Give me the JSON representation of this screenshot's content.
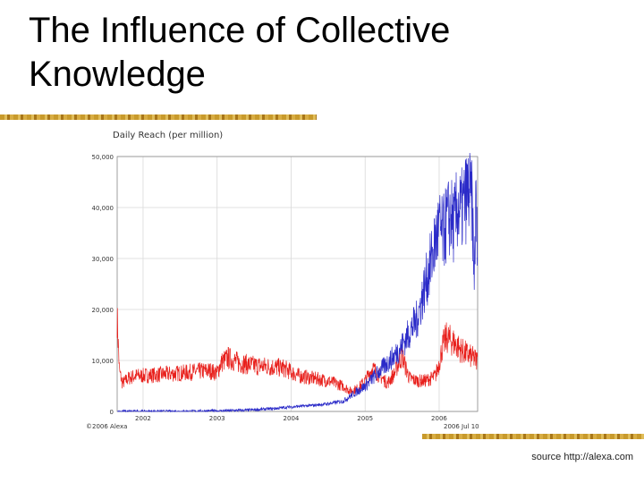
{
  "slide": {
    "title_lines": [
      "The Influence of Collective",
      "Knowledge"
    ],
    "source": "source http://alexa.com",
    "accent_color": "#c89a2c"
  },
  "chart_data": {
    "type": "line",
    "title": "Daily Reach (per million)",
    "copyright": "©2006 Alexa",
    "date_stamp": "2006 Jul 10",
    "ylim": [
      0,
      50000
    ],
    "yticks": [
      0,
      10000,
      20000,
      30000,
      40000,
      50000
    ],
    "ytick_labels": [
      "0",
      "10,000",
      "20,000",
      "30,000",
      "40,000",
      "50,000"
    ],
    "xlim": [
      2001.65,
      2006.52
    ],
    "xticks": [
      2002,
      2003,
      2004,
      2005,
      2006
    ],
    "xtick_labels": [
      "2002",
      "2003",
      "2004",
      "2005",
      "2006"
    ],
    "grid": true,
    "series": [
      {
        "color": "#e8201c",
        "x": [
          2001.65,
          2001.68,
          2001.72,
          2001.8,
          2001.9,
          2002.0,
          2002.2,
          2002.5,
          2002.7,
          2002.9,
          2003.0,
          2003.05,
          2003.15,
          2003.3,
          2003.5,
          2003.7,
          2003.9,
          2004.1,
          2004.3,
          2004.5,
          2004.7,
          2004.8,
          2004.9,
          2005.0,
          2005.1,
          2005.2,
          2005.3,
          2005.35,
          2005.4,
          2005.45,
          2005.5,
          2005.55,
          2005.6,
          2005.7,
          2005.8,
          2005.9,
          2005.95,
          2006.0,
          2006.05,
          2006.1,
          2006.2,
          2006.3,
          2006.4,
          2006.52
        ],
        "y": [
          18500,
          8000,
          5500,
          6500,
          7000,
          7000,
          7200,
          7500,
          7800,
          8000,
          7500,
          9500,
          10500,
          9500,
          9000,
          8800,
          8500,
          7000,
          6500,
          6000,
          5000,
          4000,
          4500,
          6000,
          8500,
          7000,
          5500,
          6500,
          7500,
          9500,
          11000,
          8500,
          6500,
          6000,
          6000,
          6500,
          7000,
          9500,
          13000,
          14500,
          13500,
          12000,
          11000,
          10000
        ]
      },
      {
        "color": "#2a2ac8",
        "x": [
          2001.65,
          2002.0,
          2002.5,
          2003.0,
          2003.3,
          2003.6,
          2003.8,
          2004.0,
          2004.3,
          2004.5,
          2004.7,
          2004.8,
          2004.9,
          2005.0,
          2005.1,
          2005.2,
          2005.3,
          2005.4,
          2005.5,
          2005.6,
          2005.7,
          2005.75,
          2005.8,
          2005.85,
          2005.9,
          2005.95,
          2006.0,
          2006.05,
          2006.1,
          2006.15,
          2006.2,
          2006.25,
          2006.3,
          2006.35,
          2006.4,
          2006.45,
          2006.47,
          2006.5,
          2006.52
        ],
        "y": [
          0,
          0,
          0,
          100,
          200,
          400,
          600,
          900,
          1200,
          1500,
          2000,
          3000,
          4000,
          5000,
          6500,
          8000,
          9500,
          11000,
          13000,
          15500,
          18000,
          21000,
          24000,
          27000,
          30000,
          33500,
          36000,
          34500,
          37000,
          38500,
          36500,
          40000,
          39000,
          41500,
          43000,
          40000,
          26000,
          41500,
          27000
        ]
      }
    ]
  }
}
